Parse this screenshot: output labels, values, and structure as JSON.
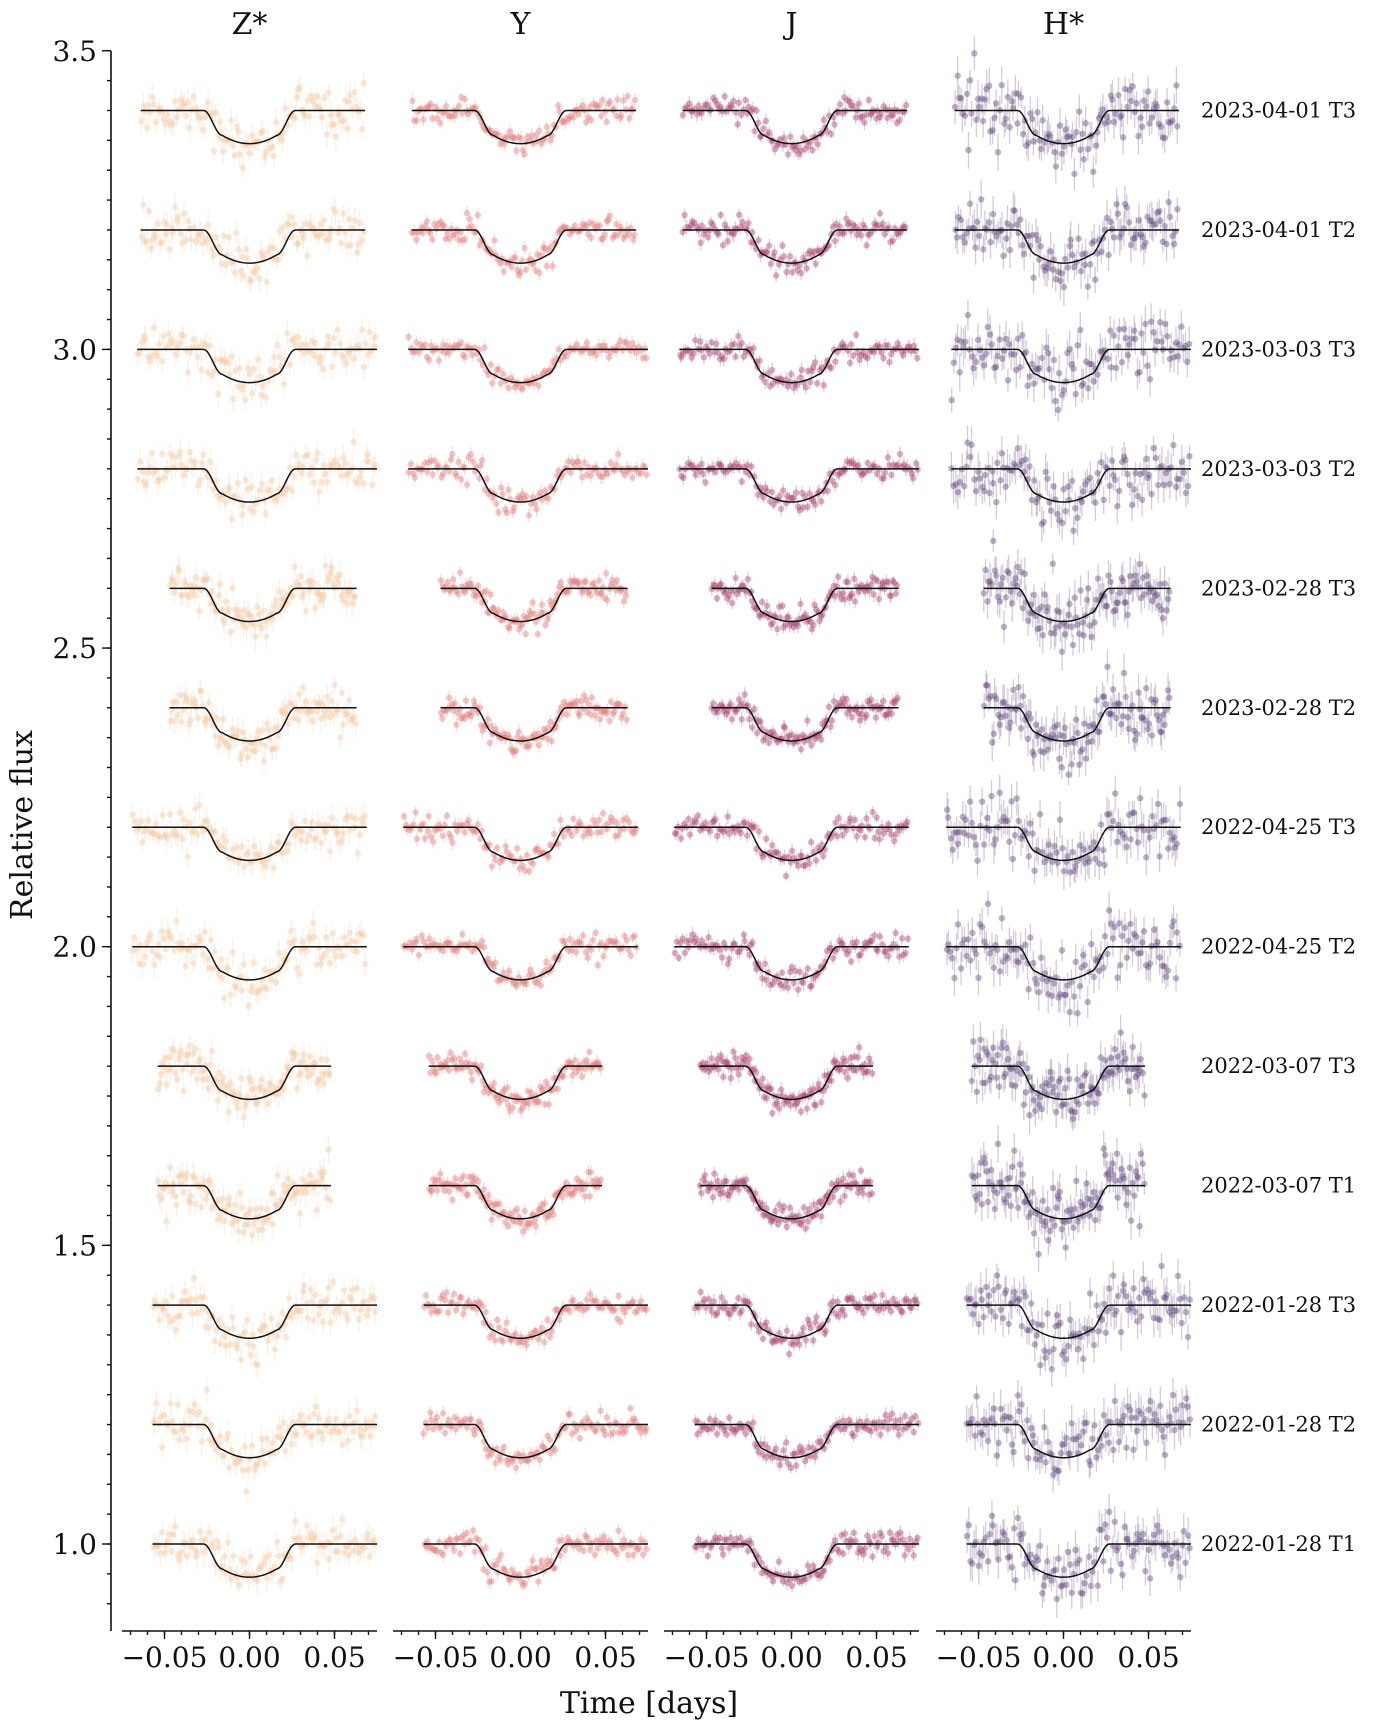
{
  "chart_data": {
    "type": "scatter",
    "panels": [
      "Z*",
      "Y",
      "J",
      "H*"
    ],
    "colors": {
      "Z*": "#f2c9a3",
      "Y": "#e07f7c",
      "J": "#a8426e",
      "H*": "#5f4479"
    },
    "ylabel": "Relative flux",
    "xlabel": "Time [days]",
    "ylim": [
      0.87,
      3.5
    ],
    "xlim": [
      -0.075,
      0.075
    ],
    "yticks": [
      {
        "value": 1.0,
        "label": "1.0"
      },
      {
        "value": 1.5,
        "label": "1.5"
      },
      {
        "value": 2.0,
        "label": "2.0"
      },
      {
        "value": 2.5,
        "label": "2.5"
      },
      {
        "value": 3.0,
        "label": "3.0"
      },
      {
        "value": 3.5,
        "label": "3.5"
      }
    ],
    "xticks": [
      {
        "value": -0.05,
        "label": "−0.05"
      },
      {
        "value": 0.0,
        "label": "0.00"
      },
      {
        "value": 0.05,
        "label": "0.05"
      }
    ],
    "transit_model": {
      "depth": 0.05,
      "t_contact_outer": 0.027,
      "t_contact_inner": 0.016
    },
    "noise": {
      "Z*": 0.018,
      "Y": 0.01,
      "J": 0.01,
      "H*": 0.025
    },
    "rows": [
      {
        "label": "2023-04-01 T3",
        "offset": 3.4,
        "xrange": {
          "Z*": [
            -0.064,
            0.068
          ],
          "Y": [
            -0.064,
            0.068
          ],
          "J": [
            -0.064,
            0.068
          ],
          "H*": [
            -0.064,
            0.068
          ]
        }
      },
      {
        "label": "2023-04-01 T2",
        "offset": 3.2,
        "xrange": {
          "Z*": [
            -0.064,
            0.068
          ],
          "Y": [
            -0.064,
            0.068
          ],
          "J": [
            -0.064,
            0.068
          ],
          "H*": [
            -0.064,
            0.068
          ]
        }
      },
      {
        "label": "2023-03-03 T3",
        "offset": 3.0,
        "xrange": {
          "Z*": [
            -0.066,
            0.075
          ],
          "Y": [
            -0.066,
            0.075
          ],
          "J": [
            -0.066,
            0.075
          ],
          "H*": [
            -0.066,
            0.075
          ]
        }
      },
      {
        "label": "2023-03-03 T2",
        "offset": 2.8,
        "xrange": {
          "Z*": [
            -0.066,
            0.075
          ],
          "Y": [
            -0.066,
            0.075
          ],
          "J": [
            -0.066,
            0.075
          ],
          "H*": [
            -0.066,
            0.075
          ]
        }
      },
      {
        "label": "2023-02-28 T3",
        "offset": 2.6,
        "xrange": {
          "Z*": [
            -0.047,
            0.063
          ],
          "Y": [
            -0.047,
            0.063
          ],
          "J": [
            -0.047,
            0.063
          ],
          "H*": [
            -0.047,
            0.063
          ]
        }
      },
      {
        "label": "2023-02-28 T2",
        "offset": 2.4,
        "xrange": {
          "Z*": [
            -0.047,
            0.063
          ],
          "Y": [
            -0.047,
            0.063
          ],
          "J": [
            -0.047,
            0.063
          ],
          "H*": [
            -0.047,
            0.063
          ]
        }
      },
      {
        "label": "2022-04-25 T3",
        "offset": 2.2,
        "xrange": {
          "Z*": [
            -0.069,
            0.069
          ],
          "Y": [
            -0.069,
            0.069
          ],
          "J": [
            -0.069,
            0.069
          ],
          "H*": [
            -0.069,
            0.069
          ]
        }
      },
      {
        "label": "2022-04-25 T2",
        "offset": 2.0,
        "xrange": {
          "Z*": [
            -0.069,
            0.069
          ],
          "Y": [
            -0.069,
            0.069
          ],
          "J": [
            -0.069,
            0.069
          ],
          "H*": [
            -0.069,
            0.069
          ]
        }
      },
      {
        "label": "2022-03-07 T3",
        "offset": 1.8,
        "xrange": {
          "Z*": [
            -0.054,
            0.048
          ],
          "Y": [
            -0.054,
            0.048
          ],
          "J": [
            -0.054,
            0.048
          ],
          "H*": [
            -0.054,
            0.048
          ]
        }
      },
      {
        "label": "2022-03-07 T1",
        "offset": 1.6,
        "xrange": {
          "Z*": [
            -0.054,
            0.048
          ],
          "Y": [
            -0.054,
            0.048
          ],
          "J": [
            -0.054,
            0.048
          ],
          "H*": [
            -0.054,
            0.048
          ]
        }
      },
      {
        "label": "2022-01-28 T3",
        "offset": 1.4,
        "xrange": {
          "Z*": [
            -0.057,
            0.075
          ],
          "Y": [
            -0.057,
            0.075
          ],
          "J": [
            -0.057,
            0.075
          ],
          "H*": [
            -0.057,
            0.075
          ]
        }
      },
      {
        "label": "2022-01-28 T2",
        "offset": 1.2,
        "xrange": {
          "Z*": [
            -0.057,
            0.075
          ],
          "Y": [
            -0.057,
            0.075
          ],
          "J": [
            -0.057,
            0.075
          ],
          "H*": [
            -0.057,
            0.075
          ]
        }
      },
      {
        "label": "2022-01-28 T1",
        "offset": 1.0,
        "xrange": {
          "Z*": [
            -0.057,
            0.075
          ],
          "Y": [
            -0.057,
            0.075
          ],
          "J": [
            -0.057,
            0.075
          ],
          "H*": [
            -0.057,
            0.075
          ]
        }
      }
    ]
  }
}
